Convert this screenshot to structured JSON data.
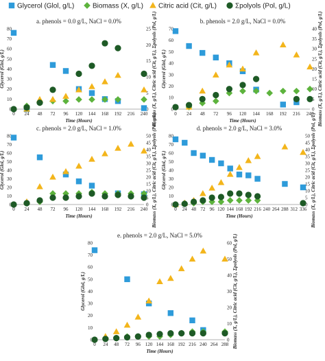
{
  "legend": [
    {
      "label": "Glycerol (Glol, g/L)",
      "marker": "square",
      "color": "#2E9BDA"
    },
    {
      "label": "Biomass (X, g/L)",
      "marker": "diamond",
      "color": "#5DB33D"
    },
    {
      "label": "Citric acid (Cit, g/L)",
      "marker": "triangle",
      "color": "#F3B51B"
    },
    {
      "label": "Σpolyols (Pol, g/L)",
      "marker": "circle",
      "color": "#1E5A26"
    }
  ],
  "colors": {
    "glycerol": "#2E9BDA",
    "biomass": "#5DB33D",
    "citric": "#F3B51B",
    "polyols": "#1E5A26"
  },
  "chart_data": [
    {
      "type": "scatter",
      "title": "a. phenols = 0.0 g/L, NaCl = 0.0%",
      "xlabel": "Time (Hours)",
      "ylabel_left": "Glycerol (Glol, g/L)",
      "ylabel_right": "Biomass (X, g/L), Citric acid (Cit, g/L), Σpolyols (Pol, g/L)",
      "xticks": [
        0,
        24,
        48,
        72,
        96,
        120,
        144,
        168,
        192,
        216,
        240
      ],
      "xlim": [
        0,
        240
      ],
      "ylim_left": [
        0,
        80
      ],
      "yticks_left": [
        0,
        10,
        20,
        30,
        40,
        50,
        60,
        70,
        80
      ],
      "ylim_right": [
        0,
        25
      ],
      "yticks_right": [
        0,
        5,
        10,
        15,
        20,
        25
      ],
      "series": [
        {
          "name": "Glycerol (Glol, g/L)",
          "axis": "left",
          "x": [
            0,
            24,
            72,
            96,
            120,
            144,
            168,
            192,
            240
          ],
          "y": [
            76,
            0,
            44,
            38,
            20,
            16,
            10,
            8,
            1
          ]
        },
        {
          "name": "Biomass (X, g/L)",
          "axis": "right",
          "x": [
            24,
            48,
            72,
            96,
            120,
            144,
            168,
            192,
            240
          ],
          "y": [
            1,
            2,
            2.5,
            2.5,
            3,
            3,
            3,
            3,
            3
          ]
        },
        {
          "name": "Citric acid (Cit, g/L)",
          "axis": "right",
          "x": [
            24,
            48,
            72,
            96,
            120,
            144,
            168,
            192,
            240
          ],
          "y": [
            0,
            3,
            3,
            4,
            6,
            7,
            8.5,
            10.5,
            6
          ]
        },
        {
          "name": "Σpolyols (Pol, g/L)",
          "axis": "right",
          "x": [
            0,
            24,
            48,
            72,
            120,
            144,
            168,
            192,
            240
          ],
          "y": [
            0,
            0.5,
            2,
            6,
            11,
            13.5,
            20.5,
            19,
            11
          ]
        }
      ]
    },
    {
      "type": "scatter",
      "title": "b. phenols = 2.0 g/L, NaCl = 0.0%",
      "xlabel": "Time (Hours)",
      "ylabel_left": "Glycerol (Glol, g/L)",
      "ylabel_right": "Biomass (X, g/L), Citric acid (Cit, g/L), Σpolyols (Pol, g/L)",
      "xticks": [
        0,
        24,
        48,
        72,
        96,
        120,
        144,
        168,
        192,
        216,
        240
      ],
      "xlim": [
        0,
        240
      ],
      "ylim_left": [
        0,
        70
      ],
      "yticks_left": [
        0,
        10,
        20,
        30,
        40,
        50,
        60,
        70
      ],
      "ylim_right": [
        0,
        40
      ],
      "yticks_right": [
        0,
        5,
        10,
        15,
        20,
        25,
        30,
        35,
        40
      ],
      "series": [
        {
          "name": "Glycerol (Glol, g/L)",
          "axis": "left",
          "x": [
            0,
            24,
            48,
            72,
            96,
            120,
            144,
            192,
            216
          ],
          "y": [
            68,
            55,
            49,
            45,
            40,
            33,
            17,
            4,
            6
          ]
        },
        {
          "name": "Biomass (X, g/L)",
          "axis": "right",
          "x": [
            24,
            48,
            72,
            96,
            120,
            144,
            168,
            192,
            216,
            240
          ],
          "y": [
            1,
            3,
            4,
            8,
            9,
            9,
            8,
            9,
            9,
            10
          ]
        },
        {
          "name": "Citric acid (Cit, g/L)",
          "axis": "right",
          "x": [
            24,
            48,
            72,
            96,
            120,
            144,
            192,
            216,
            240
          ],
          "y": [
            1,
            9,
            17,
            22,
            20,
            28,
            32,
            27,
            21
          ]
        },
        {
          "name": "Σpolyols (Pol, g/L)",
          "axis": "right",
          "x": [
            0,
            24,
            48,
            72,
            96,
            120,
            144,
            216,
            240
          ],
          "y": [
            1,
            2,
            5,
            7,
            10,
            12,
            15,
            5,
            5
          ]
        }
      ]
    },
    {
      "type": "scatter",
      "title": "c. phenols = 2.0 g/L, NaCl = 1.0%",
      "xlabel": "Time (Hours)",
      "ylabel_left": "Glycerol (Glol, g/L)",
      "ylabel_right": "Biomass (X, g/L), Citric acid (Cit, g/L), Σpolyols (Pol, g/L)",
      "xticks": [
        0,
        24,
        48,
        72,
        96,
        120,
        144,
        168,
        192,
        216,
        240
      ],
      "xlim": [
        0,
        240
      ],
      "ylim_left": [
        0,
        80
      ],
      "yticks_left": [
        0,
        10,
        20,
        30,
        40,
        50,
        60,
        70,
        80
      ],
      "ylim_right": [
        0,
        50
      ],
      "yticks_right": [
        0,
        5,
        10,
        15,
        20,
        25,
        30,
        35,
        40,
        45,
        50
      ],
      "series": [
        {
          "name": "Glycerol (Glol, g/L)",
          "axis": "left",
          "x": [
            0,
            48,
            96,
            120,
            144,
            192,
            240
          ],
          "y": [
            78,
            55,
            35,
            27,
            22,
            13,
            12
          ]
        },
        {
          "name": "Biomass (X, g/L)",
          "axis": "right",
          "x": [
            24,
            48,
            72,
            96,
            120,
            144,
            168,
            192,
            216,
            240
          ],
          "y": [
            1,
            2,
            8,
            8,
            8,
            9,
            8,
            8,
            8,
            8
          ]
        },
        {
          "name": "Citric acid (Cit, g/L)",
          "axis": "right",
          "x": [
            24,
            48,
            72,
            96,
            120,
            144,
            168,
            192,
            216,
            240
          ],
          "y": [
            2,
            13,
            20,
            24,
            28,
            33,
            37,
            41,
            44,
            39
          ]
        },
        {
          "name": "Σpolyols (Pol, g/L)",
          "axis": "right",
          "x": [
            0,
            24,
            48,
            72,
            96,
            120,
            144,
            168,
            192,
            216,
            240
          ],
          "y": [
            0,
            1,
            3,
            5,
            5,
            6,
            8,
            6,
            7,
            6,
            5
          ]
        }
      ]
    },
    {
      "type": "scatter",
      "title": "d. phenols = 2.0 g/L, NaCl = 3.0%",
      "xlabel": "Time (Hours)",
      "ylabel_left": "Glycerol (Glol, g/L)",
      "ylabel_right": "Biomass (X, g/L), Citric acid (Cit, g/L), Σpolyols (Pol, g/L)",
      "xticks": [
        0,
        24,
        48,
        72,
        96,
        120,
        144,
        168,
        192,
        216,
        240,
        264,
        288,
        312,
        336
      ],
      "xlim": [
        0,
        336
      ],
      "ylim_left": [
        0,
        80
      ],
      "yticks_left": [
        0,
        10,
        20,
        30,
        40,
        50,
        60,
        70,
        80
      ],
      "ylim_right": [
        0,
        50
      ],
      "yticks_right": [
        0,
        5,
        10,
        15,
        20,
        25,
        30,
        35,
        40,
        45,
        50
      ],
      "series": [
        {
          "name": "Glycerol (Glol, g/L)",
          "axis": "left",
          "x": [
            0,
            24,
            48,
            72,
            96,
            120,
            144,
            168,
            192,
            216,
            288,
            336
          ],
          "y": [
            76,
            72,
            60,
            57,
            52,
            48,
            42,
            35,
            34,
            30,
            24,
            20
          ]
        },
        {
          "name": "Biomass (X, g/L)",
          "axis": "right",
          "x": [
            24,
            48,
            72,
            96,
            120,
            144,
            168,
            192,
            216
          ],
          "y": [
            1,
            1,
            2,
            2,
            2,
            3,
            3,
            3,
            3
          ]
        },
        {
          "name": "Citric acid (Cit, g/L)",
          "axis": "right",
          "x": [
            0,
            24,
            48,
            72,
            96,
            120,
            144,
            168,
            192,
            216,
            288,
            336
          ],
          "y": [
            0,
            1,
            3,
            8,
            12,
            16,
            22,
            27,
            32,
            35,
            42,
            38
          ]
        },
        {
          "name": "Σpolyols (Pol, g/L)",
          "axis": "right",
          "x": [
            0,
            24,
            48,
            72,
            96,
            120,
            144,
            168,
            192,
            216,
            336
          ],
          "y": [
            0,
            0.5,
            2,
            3,
            5,
            5.5,
            8,
            8,
            7,
            6,
            1
          ]
        }
      ]
    },
    {
      "type": "scatter",
      "title": "e. phenols = 2.0 g/L, NaCl = 5.0%",
      "xlabel": "Time (Hours)",
      "ylabel_left": "Glycerol (Glol, g/L)",
      "ylabel_right": "Biomass (X, g/L), Citric acid (Cit, g/L), Σpolyols (Pol, g/L)",
      "xticks": [
        0,
        24,
        48,
        72,
        96,
        120,
        144,
        168,
        192,
        216,
        240,
        264,
        288
      ],
      "xlim": [
        0,
        288
      ],
      "ylim_left": [
        0,
        80
      ],
      "yticks_left": [
        0,
        10,
        20,
        30,
        40,
        50,
        60,
        70,
        80
      ],
      "ylim_right": [
        0,
        60
      ],
      "yticks_right": [
        0,
        10,
        20,
        30,
        40,
        50,
        60
      ],
      "series": [
        {
          "name": "Glycerol (Glol, g/L)",
          "axis": "left",
          "x": [
            0,
            72,
            120,
            168,
            216,
            240
          ],
          "y": [
            74,
            50,
            30,
            22,
            16,
            8
          ]
        },
        {
          "name": "Biomass (X, g/L)",
          "axis": "right",
          "x": [
            24,
            48,
            72,
            96,
            120,
            144,
            168,
            192,
            216,
            240,
            288
          ],
          "y": [
            1,
            1,
            2,
            2,
            2,
            2,
            3,
            4,
            5,
            5,
            5
          ]
        },
        {
          "name": "Citric acid (Cit, g/L)",
          "axis": "right",
          "x": [
            24,
            48,
            72,
            96,
            120,
            144,
            168,
            192,
            216,
            240,
            288
          ],
          "y": [
            2,
            5,
            9,
            14,
            24,
            36,
            38,
            44,
            50,
            55,
            50
          ]
        },
        {
          "name": "Σpolyols (Pol, g/L)",
          "axis": "right",
          "x": [
            0,
            24,
            48,
            72,
            96,
            120,
            144,
            168,
            192,
            216,
            240,
            288
          ],
          "y": [
            0,
            0.5,
            1,
            1.5,
            2,
            3,
            3.5,
            4,
            4,
            4,
            4,
            4
          ]
        }
      ]
    }
  ]
}
